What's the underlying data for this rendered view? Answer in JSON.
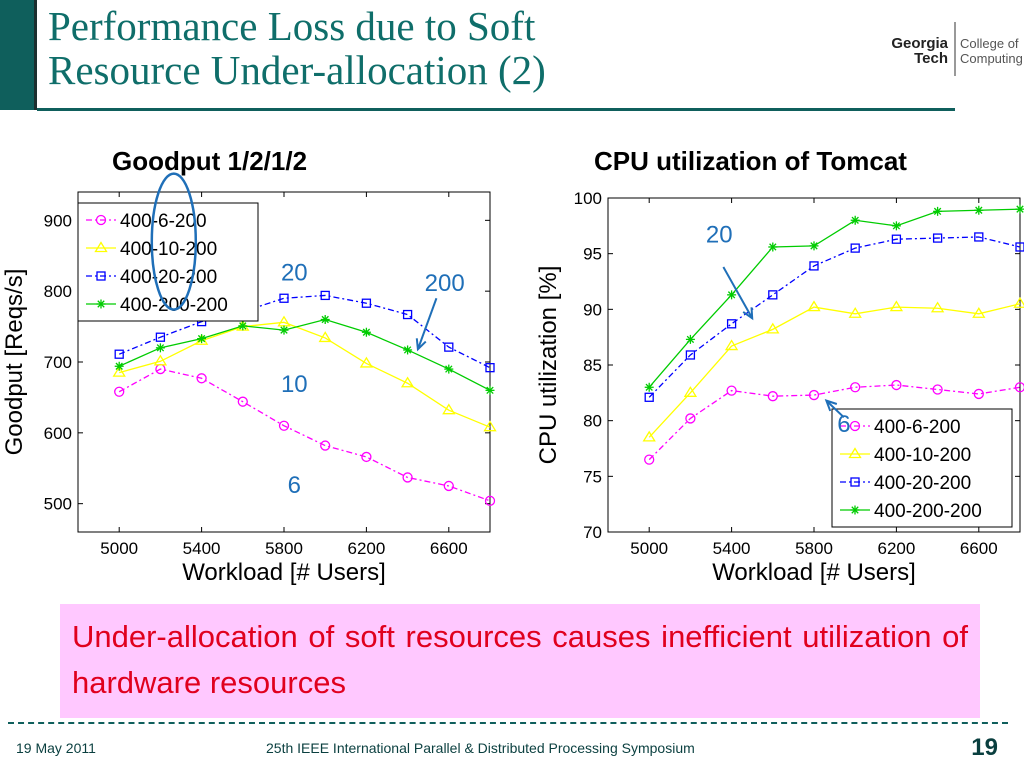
{
  "header": {
    "title_lines": [
      "Performance Loss due to Soft",
      "Resource Under-allocation (2)"
    ],
    "logo_left": [
      "Georgia",
      "Tech"
    ],
    "logo_right": [
      "College of",
      "Computing"
    ]
  },
  "colors": {
    "accent": "#0f5f5c",
    "title": "#0f6e6a",
    "note_bg": "#ffc8ff",
    "note_text": "#e0001e",
    "annotation": "#1f6fb8"
  },
  "chart_data": [
    {
      "type": "line",
      "title": "Goodput  1/2/1/2",
      "xlabel": "Workload [# Users]",
      "ylabel": "Goodput [Reqs/s]",
      "xlim": [
        4800,
        6800
      ],
      "ylim": [
        460,
        940
      ],
      "xticks": [
        5000,
        5400,
        5800,
        6200,
        6600
      ],
      "yticks": [
        500,
        600,
        700,
        800,
        900
      ],
      "grid": false,
      "legend": "top-left",
      "x": [
        5000,
        5200,
        5400,
        5600,
        5800,
        6000,
        6200,
        6400,
        6600,
        6800
      ],
      "series": [
        {
          "name": "400-6-200",
          "color": "#ff00ff",
          "marker": "circle",
          "dash": "6,3,2,3",
          "values": [
            658,
            690,
            677,
            644,
            610,
            582,
            566,
            537,
            525,
            504
          ]
        },
        {
          "name": "400-10-200",
          "color": "#ffff00",
          "marker": "triangle",
          "dash": "none",
          "values": [
            685,
            701,
            730,
            750,
            756,
            734,
            698,
            670,
            632,
            608
          ]
        },
        {
          "name": "400-20-200",
          "color": "#0000ff",
          "marker": "square",
          "dash": "6,3,2,3",
          "values": [
            711,
            735,
            757,
            771,
            790,
            794,
            783,
            767,
            721,
            692
          ]
        },
        {
          "name": "400-200-200",
          "color": "#00cc00",
          "marker": "star",
          "dash": "none",
          "values": [
            694,
            720,
            733,
            751,
            745,
            760,
            742,
            717,
            690,
            660
          ]
        }
      ],
      "annotations": [
        {
          "text": "20",
          "x": 5850,
          "y": 815
        },
        {
          "text": "200",
          "x": 6580,
          "y": 800
        },
        {
          "text": "10",
          "x": 5850,
          "y": 658
        },
        {
          "text": "6",
          "x": 5850,
          "y": 515
        }
      ]
    },
    {
      "type": "line",
      "title": "CPU utilization of Tomcat",
      "xlabel": "Workload [# Users]",
      "ylabel": "CPU utilization [%]",
      "xlim": [
        4800,
        6800
      ],
      "ylim": [
        70,
        100
      ],
      "xticks": [
        5000,
        5400,
        5800,
        6200,
        6600
      ],
      "yticks": [
        70,
        75,
        80,
        85,
        90,
        95,
        100
      ],
      "grid": false,
      "legend": "bottom-right",
      "x": [
        5000,
        5200,
        5400,
        5600,
        5800,
        6000,
        6200,
        6400,
        6600,
        6800
      ],
      "series": [
        {
          "name": "400-6-200",
          "color": "#ff00ff",
          "marker": "circle",
          "dash": "6,3,2,3",
          "values": [
            76.5,
            80.2,
            82.7,
            82.2,
            82.3,
            83.0,
            83.2,
            82.8,
            82.4,
            83.0
          ]
        },
        {
          "name": "400-10-200",
          "color": "#ffff00",
          "marker": "triangle",
          "dash": "none",
          "values": [
            78.5,
            82.5,
            86.7,
            88.2,
            90.2,
            89.6,
            90.2,
            90.1,
            89.6,
            90.5
          ]
        },
        {
          "name": "400-20-200",
          "color": "#0000ff",
          "marker": "square",
          "dash": "6,3,2,3",
          "values": [
            82.1,
            85.9,
            88.7,
            91.3,
            93.9,
            95.5,
            96.3,
            96.4,
            96.5,
            95.6
          ]
        },
        {
          "name": "400-200-200",
          "color": "#00cc00",
          "marker": "star",
          "dash": "none",
          "values": [
            83.0,
            87.3,
            91.3,
            95.6,
            95.7,
            98.0,
            97.5,
            98.8,
            98.9,
            99.0
          ]
        }
      ],
      "annotations": [
        {
          "text": "20",
          "x": 5340,
          "y": 96.0
        },
        {
          "text": "6",
          "x": 5945,
          "y": 79.0
        }
      ]
    }
  ],
  "note": "Under-allocation of soft resources causes inefficient utilization of hardware resources",
  "footer": {
    "date": "19 May 2011",
    "conference": "25th IEEE International Parallel & Distributed Processing Symposium",
    "page": "19"
  }
}
